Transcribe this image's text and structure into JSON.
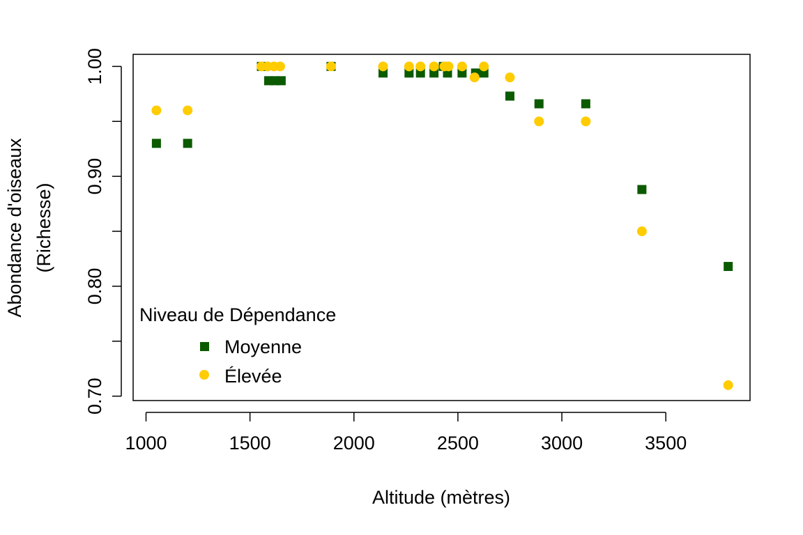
{
  "chart_data": {
    "type": "scatter",
    "title": "",
    "xlabel": "Altitude (mètres)",
    "ylabel_lines": [
      "Abondance d'oiseaux",
      "(Richesse)"
    ],
    "xlim": [
      938,
      3905
    ],
    "ylim": [
      0.696,
      1.011
    ],
    "x_ticks": [
      1000,
      1500,
      2000,
      2500,
      3000,
      3500
    ],
    "x_tick_labels": [
      "1000",
      "1500",
      "2000",
      "2500",
      "3000",
      "3500"
    ],
    "y_ticks": [
      0.7,
      0.75,
      0.8,
      0.85,
      0.9,
      0.95,
      1.0
    ],
    "y_tick_labels": [
      "0.70",
      "",
      "0.80",
      "",
      "0.90",
      "",
      "1.00"
    ],
    "grid": false,
    "legend": {
      "title": "Niveau de Dépendance",
      "position": "bottom-left"
    },
    "series": [
      {
        "name": "Moyenne",
        "marker": "square",
        "color": "#0b5a00",
        "points": [
          [
            1050,
            0.93
          ],
          [
            1200,
            0.93
          ],
          [
            1555,
            1.0
          ],
          [
            1590,
            0.987
          ],
          [
            1620,
            0.987
          ],
          [
            1650,
            0.987
          ],
          [
            1890,
            1.0
          ],
          [
            2140,
            0.994
          ],
          [
            2265,
            0.994
          ],
          [
            2320,
            0.994
          ],
          [
            2385,
            0.994
          ],
          [
            2430,
            1.0
          ],
          [
            2450,
            0.994
          ],
          [
            2520,
            0.994
          ],
          [
            2585,
            0.994
          ],
          [
            2625,
            0.994
          ],
          [
            2750,
            0.973
          ],
          [
            2890,
            0.966
          ],
          [
            3115,
            0.966
          ],
          [
            3385,
            0.888
          ],
          [
            3800,
            0.818
          ]
        ]
      },
      {
        "name": "Élevée",
        "marker": "circle",
        "color": "#ffcc00",
        "points": [
          [
            1050,
            0.96
          ],
          [
            1200,
            0.96
          ],
          [
            1555,
            1.0
          ],
          [
            1585,
            1.0
          ],
          [
            1615,
            1.0
          ],
          [
            1645,
            1.0
          ],
          [
            1890,
            1.0
          ],
          [
            2140,
            1.0
          ],
          [
            2265,
            1.0
          ],
          [
            2320,
            1.0
          ],
          [
            2385,
            1.0
          ],
          [
            2435,
            1.0
          ],
          [
            2455,
            1.0
          ],
          [
            2520,
            1.0
          ],
          [
            2580,
            0.99
          ],
          [
            2625,
            1.0
          ],
          [
            2750,
            0.99
          ],
          [
            2890,
            0.95
          ],
          [
            3115,
            0.95
          ],
          [
            3385,
            0.85
          ],
          [
            3800,
            0.71
          ]
        ]
      }
    ]
  }
}
